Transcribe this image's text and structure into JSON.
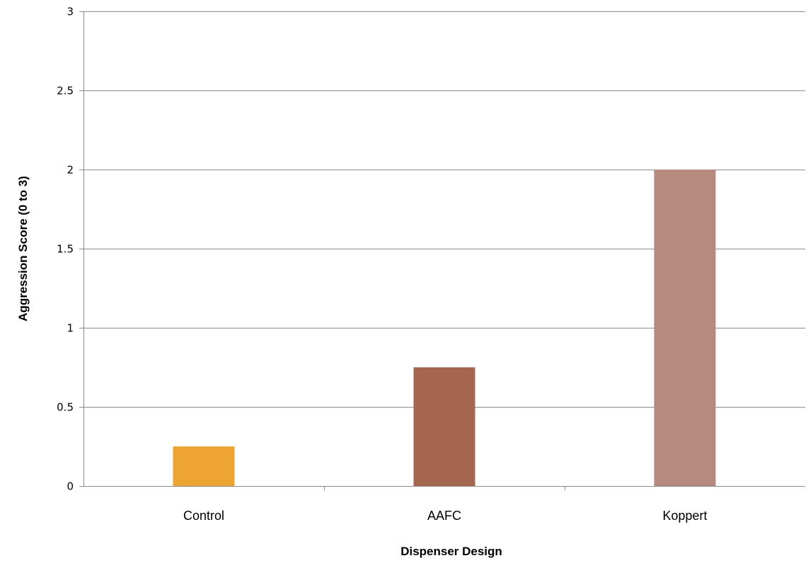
{
  "chart_data": {
    "type": "bar",
    "title": "",
    "xlabel": "Dispenser Design",
    "ylabel": "Aggression Score (0 to 3)",
    "categories": [
      "Control",
      "AAFC",
      "Koppert"
    ],
    "values": [
      0.25,
      0.75,
      2
    ],
    "colors": [
      "#EEA431",
      "#A4664F",
      "#B68A7E"
    ],
    "ylim": [
      0,
      3
    ],
    "yticks": [
      0,
      0.5,
      1,
      1.5,
      2,
      2.5,
      3
    ],
    "ytick_labels": [
      "0",
      "0.5",
      "1",
      "1.5",
      "2",
      "2.5",
      "3"
    ],
    "grid": true,
    "legend": "none"
  }
}
